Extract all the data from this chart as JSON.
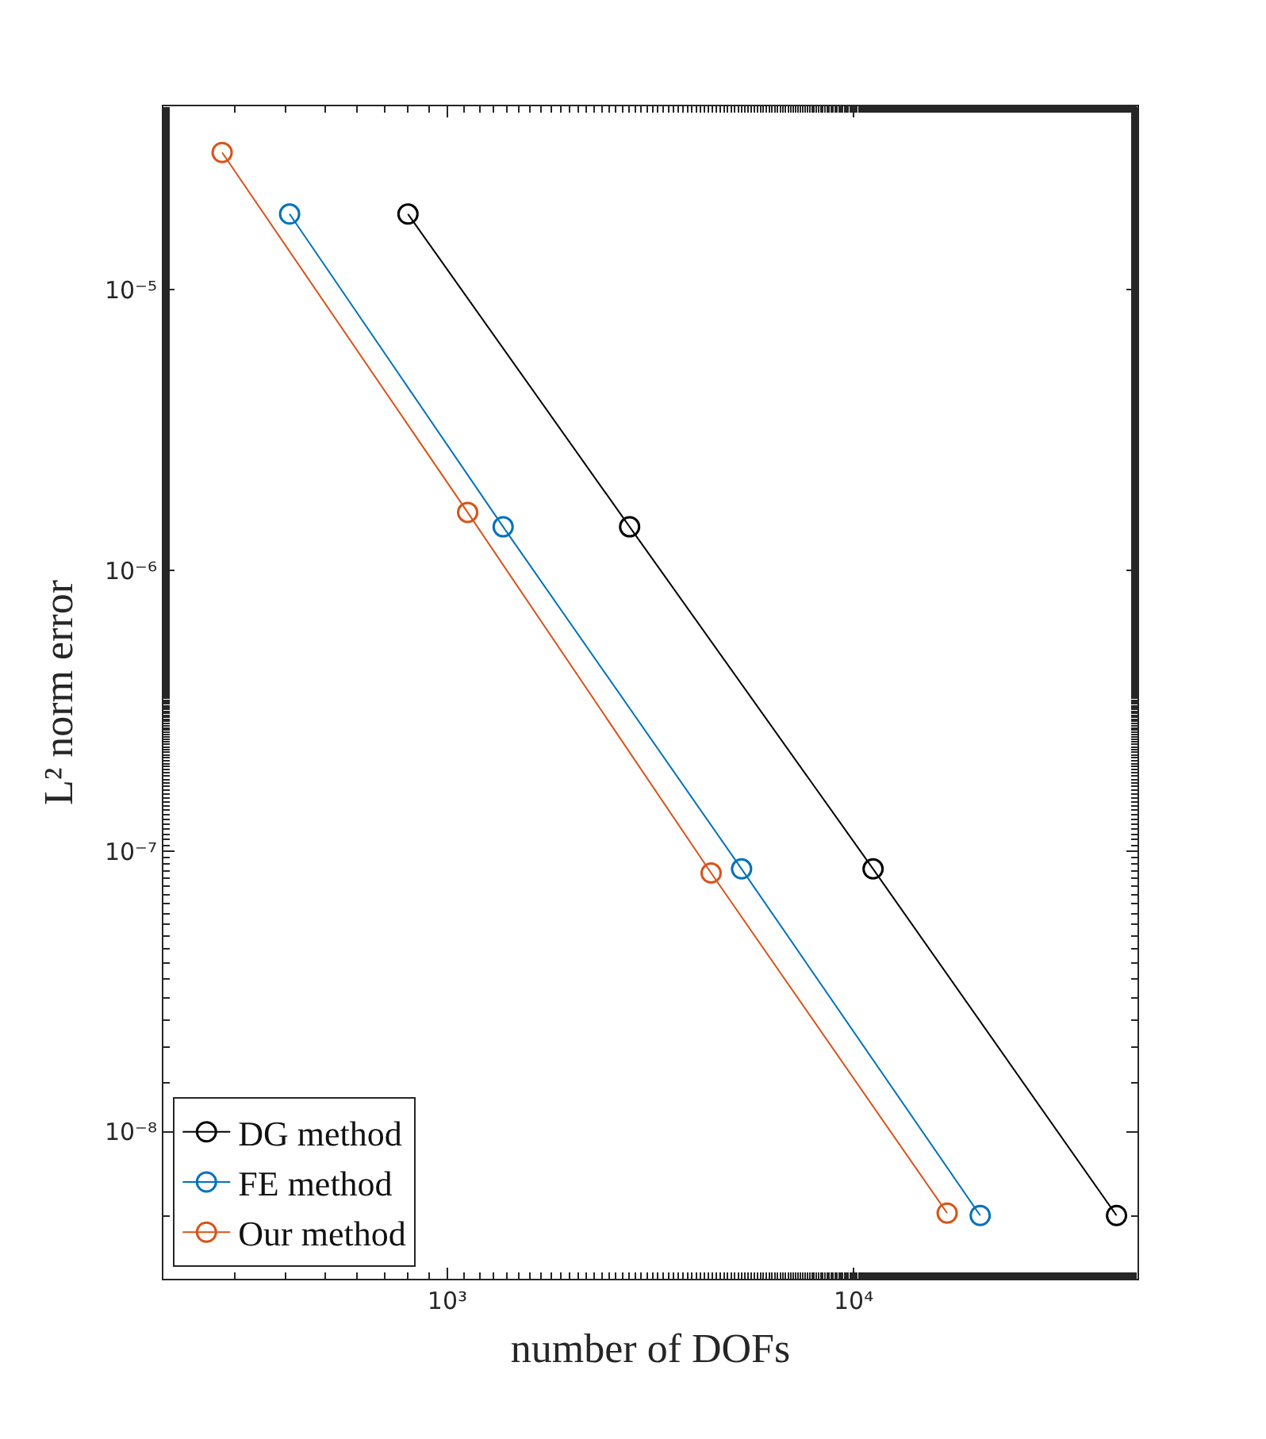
{
  "chart_data": {
    "type": "line",
    "xlabel": "number of DOFs",
    "ylabel": "L² norm error",
    "log": "xy",
    "grid": false,
    "legend": "bottom left",
    "marker": "circle",
    "line_style": "solid",
    "xlim": [
      200,
      50000
    ],
    "ylim": [
      3e-09,
      4.5e-05
    ],
    "xticks": [
      {
        "value": 1000,
        "label": "10³"
      },
      {
        "value": 10000,
        "label": "10⁴"
      }
    ],
    "yticks": [
      {
        "value": 1e-08,
        "label": "10⁻⁸"
      },
      {
        "value": 1e-07,
        "label": "10⁻⁷"
      },
      {
        "value": 1e-06,
        "label": "10⁻⁶"
      },
      {
        "value": 1e-05,
        "label": "10⁻⁵"
      }
    ],
    "series": [
      {
        "name": "DG method",
        "color": "#000000",
        "x": [
          800,
          2810,
          11170,
          44400
        ],
        "values": [
          1.86e-05,
          1.43e-06,
          8.65e-08,
          5.04e-09
        ]
      },
      {
        "name": "FE method",
        "color": "#0072bd",
        "x": [
          409,
          1372,
          5300,
          20500
        ],
        "values": [
          1.86e-05,
          1.43e-06,
          8.65e-08,
          5.04e-09
        ]
      },
      {
        "name": "Our method",
        "color": "#d95319",
        "x": [
          279,
          1122,
          4460,
          17000
        ],
        "values": [
          3.08e-05,
          1.61e-06,
          8.36e-08,
          5.14e-09
        ]
      }
    ]
  }
}
